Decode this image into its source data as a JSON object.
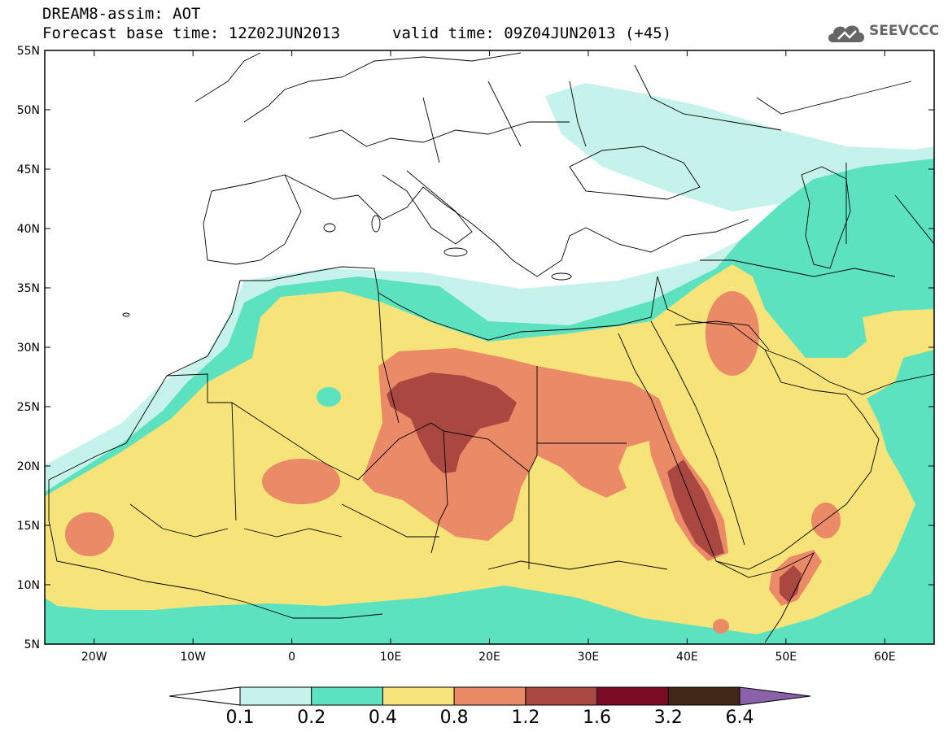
{
  "title": {
    "line1": "DREAM8-assim: AOT",
    "line2": "Forecast base time: 12Z02JUN2013",
    "line3": "valid time: 09Z04JUN2013 (+45)"
  },
  "logo": {
    "text": "SEEVCCC",
    "icon": "cloud-logo-icon"
  },
  "map": {
    "lon_range": [
      -25,
      65
    ],
    "lat_range": [
      5,
      55
    ],
    "x_ticks": [
      {
        "lon": -20,
        "label": "20W"
      },
      {
        "lon": -10,
        "label": "10W"
      },
      {
        "lon": 0,
        "label": "0"
      },
      {
        "lon": 10,
        "label": "10E"
      },
      {
        "lon": 20,
        "label": "20E"
      },
      {
        "lon": 30,
        "label": "30E"
      },
      {
        "lon": 40,
        "label": "40E"
      },
      {
        "lon": 50,
        "label": "50E"
      },
      {
        "lon": 60,
        "label": "60E"
      }
    ],
    "y_ticks": [
      {
        "lat": 55,
        "label": "55N"
      },
      {
        "lat": 50,
        "label": "50N"
      },
      {
        "lat": 45,
        "label": "45N"
      },
      {
        "lat": 40,
        "label": "40N"
      },
      {
        "lat": 35,
        "label": "35N"
      },
      {
        "lat": 30,
        "label": "30N"
      },
      {
        "lat": 25,
        "label": "25N"
      },
      {
        "lat": 20,
        "label": "20N"
      },
      {
        "lat": 15,
        "label": "15N"
      },
      {
        "lat": 10,
        "label": "10N"
      },
      {
        "lat": 5,
        "label": "5N"
      }
    ]
  },
  "legend": {
    "levels": [
      "0.1",
      "0.2",
      "0.4",
      "0.8",
      "1.2",
      "1.6",
      "3.2",
      "6.4"
    ],
    "colors": [
      "#ffffff",
      "#c6f2ec",
      "#5ce2be",
      "#f6e47a",
      "#ea8a66",
      "#a84840",
      "#7c0c26",
      "#3f2818",
      "#8b62a8"
    ]
  }
}
